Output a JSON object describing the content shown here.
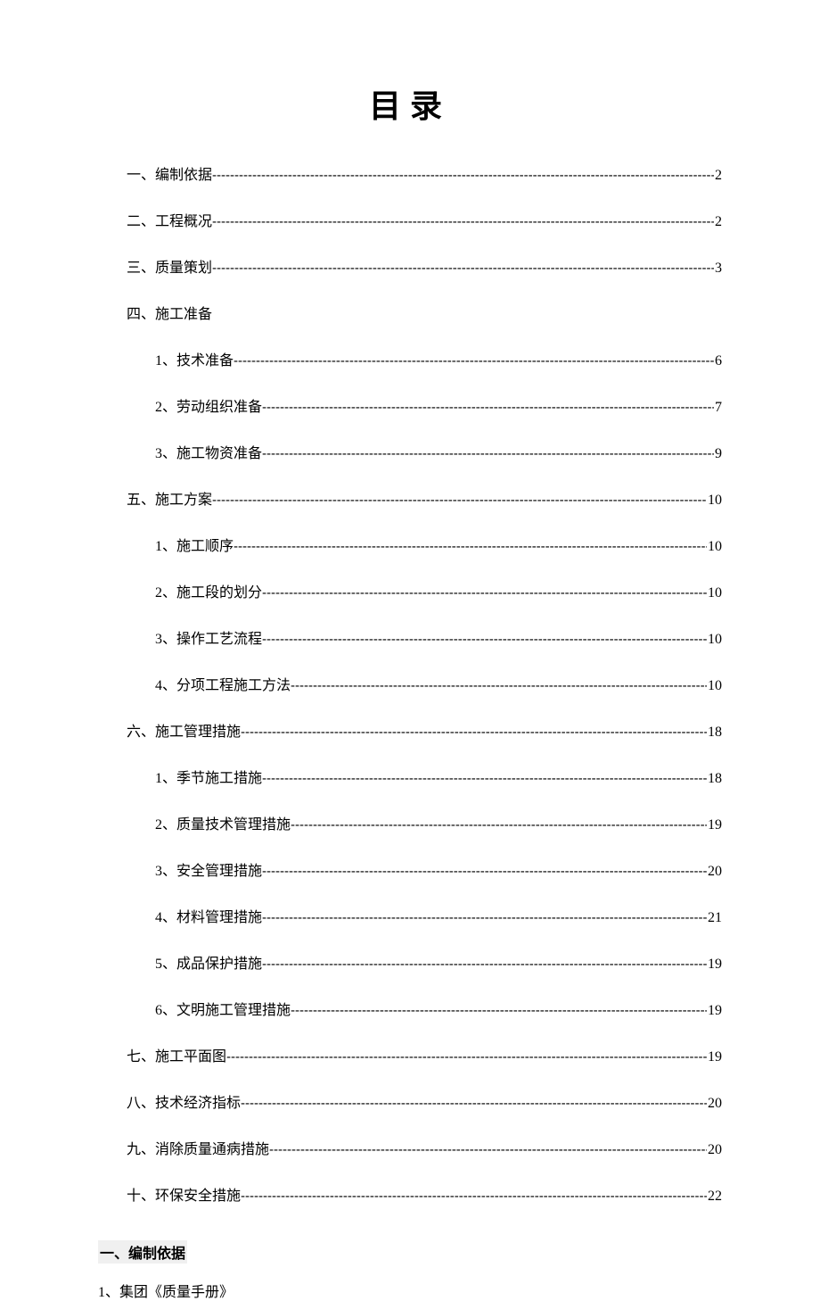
{
  "title": "目录",
  "toc": [
    {
      "level": 1,
      "label": "一、编制依据",
      "page": "2"
    },
    {
      "level": 1,
      "label": "二、工程概况",
      "page": "2"
    },
    {
      "level": 1,
      "label": "三、质量策划",
      "page": "3"
    },
    {
      "level": 1,
      "label": "四、施工准备",
      "page": null
    },
    {
      "level": 2,
      "label": "1、技术准备",
      "page": "6"
    },
    {
      "level": 2,
      "label": "2、劳动组织准备",
      "page": "7"
    },
    {
      "level": 2,
      "label": "3、施工物资准备",
      "page": "9"
    },
    {
      "level": 1,
      "label": "五、施工方案",
      "page": "10"
    },
    {
      "level": 2,
      "label": "1、施工顺序",
      "page": "10"
    },
    {
      "level": 2,
      "label": "2、施工段的划分",
      "page": "10"
    },
    {
      "level": 2,
      "label": "3、操作工艺流程",
      "page": "10"
    },
    {
      "level": 2,
      "label": "4、分项工程施工方法",
      "page": "10"
    },
    {
      "level": 1,
      "label": "六、施工管理措施",
      "page": "18"
    },
    {
      "level": 2,
      "label": "1、季节施工措施",
      "page": "18"
    },
    {
      "level": 2,
      "label": "2、质量技术管理措施",
      "page": "19"
    },
    {
      "level": 2,
      "label": "3、安全管理措施",
      "page": "20"
    },
    {
      "level": 2,
      "label": "4、材料管理措施",
      "page": "21"
    },
    {
      "level": 2,
      "label": "5、成品保护措施",
      "page": "19"
    },
    {
      "level": 2,
      "label": "6、文明施工管理措施",
      "page": "19"
    },
    {
      "level": 1,
      "label": "七、施工平面图",
      "page": "19"
    },
    {
      "level": 1,
      "label": "八、技术经济指标",
      "page": "20"
    },
    {
      "level": 1,
      "label": "九、消除质量通病措施",
      "page": "20"
    },
    {
      "level": 1,
      "label": "十、环保安全措施",
      "page": "22"
    }
  ],
  "section_heading": "一、编制依据",
  "body_line_1": "1、集团《质量手册》",
  "colors": {
    "background": "#ffffff",
    "text": "#000000",
    "heading_bg": "#f0f0f0"
  },
  "typography": {
    "title_fontsize": 36,
    "body_fontsize": 16,
    "font_family": "SimSun"
  }
}
